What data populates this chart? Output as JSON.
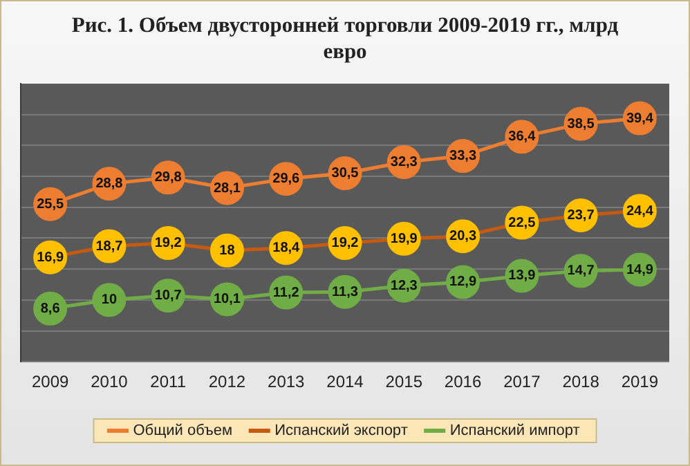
{
  "chart_data": {
    "type": "line",
    "title": "Рис. 1. Объем двусторонней торговли 2009-2019 гг., млрд евро",
    "categories": [
      "2009",
      "2010",
      "2011",
      "2012",
      "2013",
      "2014",
      "2015",
      "2016",
      "2017",
      "2018",
      "2019"
    ],
    "series": [
      {
        "name": "Общий объем",
        "color": "#ed7d31",
        "values": [
          25.5,
          28.8,
          29.8,
          28.1,
          29.6,
          30.5,
          32.3,
          33.3,
          36.4,
          38.5,
          39.4
        ],
        "value_labels": [
          "25,5",
          "28,8",
          "29,8",
          "28,1",
          "29,6",
          "30,5",
          "32,3",
          "33,3",
          "36,4",
          "38,5",
          "39,4"
        ]
      },
      {
        "name": "Испанский экспорт",
        "color": "#c55a11",
        "colors": [
          "#ffc000",
          "#ffc000",
          "#ffc000",
          "#ffc000",
          "#ffc000",
          "#ffc000",
          "#ffc000",
          "#ffc000",
          "#ffc000",
          "#ffc000",
          "#ffc000"
        ],
        "values": [
          16.9,
          18.7,
          19.2,
          18,
          18.4,
          19.2,
          19.9,
          20.3,
          22.5,
          23.7,
          24.4
        ],
        "value_labels": [
          "16,9",
          "18,7",
          "19,2",
          "18",
          "18,4",
          "19,2",
          "19,9",
          "20,3",
          "22,5",
          "23,7",
          "24,4"
        ]
      },
      {
        "name": "Испанский импорт",
        "color": "#70ad47",
        "values": [
          8.6,
          10,
          10.7,
          10.1,
          11.2,
          11.3,
          12.3,
          12.9,
          13.9,
          14.7,
          14.9
        ],
        "value_labels": [
          "8,6",
          "10",
          "10,7",
          "10,1",
          "11,2",
          "11,3",
          "12,3",
          "12,9",
          "13,9",
          "14,7",
          "14,9"
        ]
      }
    ],
    "ylim": [
      0,
      45
    ],
    "yticks": [
      {
        "value": 0,
        "label": null
      },
      {
        "value": 5,
        "label": null
      },
      {
        "value": 10,
        "label": null
      },
      {
        "value": 15,
        "label": null
      },
      {
        "value": 20,
        "label": null
      },
      {
        "value": 25,
        "label": null
      },
      {
        "value": 30,
        "label": null
      },
      {
        "value": 35,
        "label": null
      },
      {
        "value": 40,
        "label": null
      },
      {
        "value": 45,
        "label": null
      }
    ],
    "tick_labels": "x",
    "grid": "y",
    "legend": "bottom",
    "marker": "circle",
    "line_style": "solid"
  }
}
